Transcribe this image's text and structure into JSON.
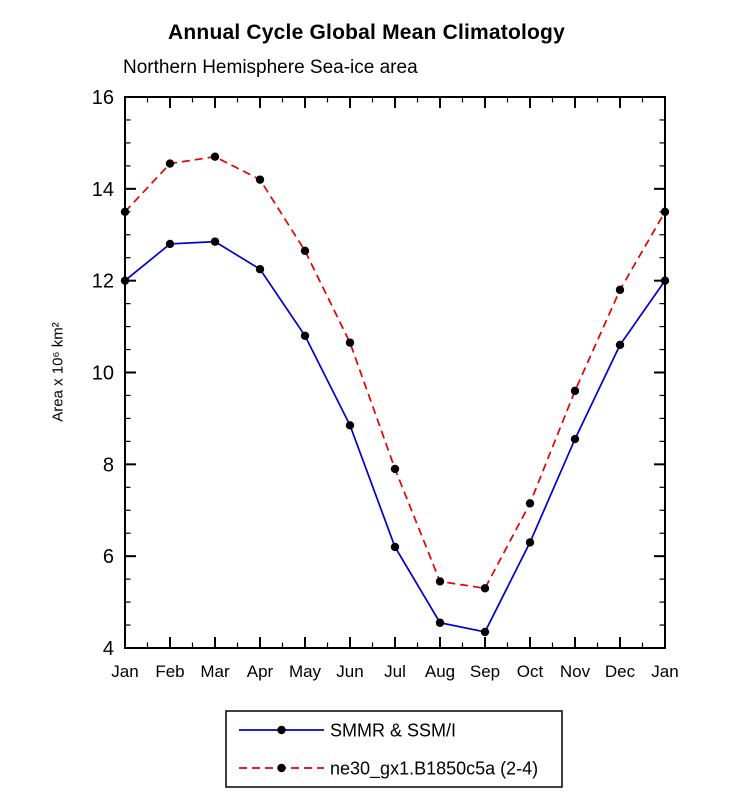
{
  "title": "Annual Cycle Global Mean Climatology",
  "subtitle": "Northern Hemisphere Sea-ice area",
  "chart_data": {
    "type": "line",
    "categories": [
      "Jan",
      "Feb",
      "Mar",
      "Apr",
      "May",
      "Jun",
      "Jul",
      "Aug",
      "Sep",
      "Oct",
      "Nov",
      "Dec",
      "Jan"
    ],
    "series": [
      {
        "name": "SMMR & SSM/I",
        "color": "#0000cc",
        "style": "solid",
        "marker": "circle",
        "marker_color": "#000000",
        "values": [
          12.0,
          12.8,
          12.85,
          12.25,
          10.8,
          8.85,
          6.2,
          4.55,
          4.35,
          6.3,
          8.55,
          10.6,
          12.0
        ]
      },
      {
        "name": "ne30_gx1.B1850c5a (2-4)",
        "color": "#e50000",
        "style": "dashed",
        "marker": "circle",
        "marker_color": "#000000",
        "values": [
          13.5,
          14.55,
          14.7,
          14.2,
          12.65,
          10.65,
          7.9,
          5.45,
          5.3,
          7.15,
          9.6,
          11.8,
          13.5
        ]
      }
    ],
    "ylabel": "Area x 10⁶ km²",
    "xlabel": "",
    "ylim": [
      4,
      16
    ],
    "yticks": [
      4,
      6,
      8,
      10,
      12,
      14,
      16
    ],
    "y_minor_step": 0.5,
    "grid": false,
    "legend_position": "bottom"
  }
}
